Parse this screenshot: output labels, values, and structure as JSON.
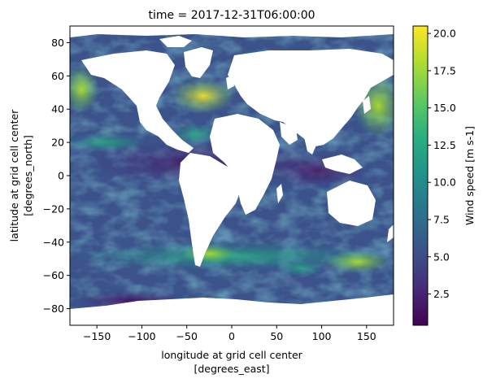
{
  "chart_data": {
    "type": "heatmap",
    "title": "time = 2017-12-31T06:00:00",
    "xlabel": "longitude at grid cell center",
    "xlabel_units": "[degrees_east]",
    "ylabel": "latitude at grid cell center",
    "ylabel_units": "[degrees_north]",
    "xlim": [
      -180,
      180
    ],
    "ylim": [
      -90,
      90
    ],
    "x_ticks": [
      -150,
      -100,
      -50,
      0,
      50,
      100,
      150
    ],
    "x_tick_labels": [
      "−150",
      "−100",
      "−50",
      "0",
      "50",
      "100",
      "150"
    ],
    "y_ticks": [
      -80,
      -60,
      -40,
      -20,
      0,
      20,
      40,
      60,
      80
    ],
    "y_tick_labels": [
      "−80",
      "−60",
      "−40",
      "−20",
      "0",
      "20",
      "40",
      "60",
      "80"
    ],
    "colorbar": {
      "label": "Wind speed [m s-1]",
      "range": [
        0.4,
        20.5
      ],
      "ticks": [
        2.5,
        5.0,
        7.5,
        10.0,
        12.5,
        15.0,
        17.5,
        20.0
      ],
      "tick_labels": [
        "2.5",
        "5.0",
        "7.5",
        "10.0",
        "12.5",
        "15.0",
        "17.5",
        "20.0"
      ],
      "colormap": "viridis"
    },
    "grid": false,
    "colors": {
      "viridis": [
        "#440154",
        "#472c7a",
        "#3b528b",
        "#2c728e",
        "#21918c",
        "#28ae80",
        "#5ec962",
        "#addc30",
        "#fde725"
      ],
      "land": "#ffffff"
    }
  }
}
